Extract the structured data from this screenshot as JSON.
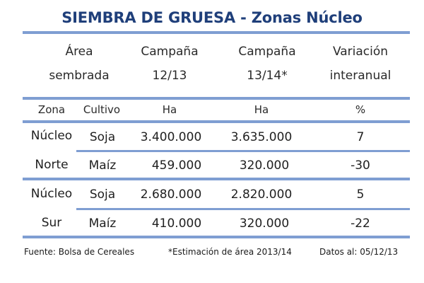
{
  "title": "SIEMBRA DE GRUESA - Zonas Núcleo",
  "header": {
    "area_line1": "Área",
    "area_line2": "sembrada",
    "campaign1_line1": "Campaña",
    "campaign1_line2": "12/13",
    "campaign2_line1": "Campaña",
    "campaign2_line2": "13/14*",
    "variation_line1": "Variación",
    "variation_line2": "interanual"
  },
  "subheader": {
    "zone": "Zona",
    "crop": "Cultivo",
    "unit1": "Ha",
    "unit2": "Ha",
    "unit3": "%"
  },
  "zones": [
    {
      "name_line1": "Núcleo",
      "name_line2": "Norte",
      "rows": [
        {
          "crop": "Soja",
          "c1213": "3.400.000",
          "c1314": "3.635.000",
          "variation": "7"
        },
        {
          "crop": "Maíz",
          "c1213": "459.000",
          "c1314": "320.000",
          "variation": "-30"
        }
      ]
    },
    {
      "name_line1": "Núcleo",
      "name_line2": "Sur",
      "rows": [
        {
          "crop": "Soja",
          "c1213": "2.680.000",
          "c1314": "2.820.000",
          "variation": "5"
        },
        {
          "crop": "Maíz",
          "c1213": "410.000",
          "c1314": "320.000",
          "variation": "-22"
        }
      ]
    }
  ],
  "footer": {
    "source": "Fuente: Bolsa de Cereales",
    "note": "*Estimación de área 2013/14",
    "date": "Datos al: 05/12/13"
  }
}
